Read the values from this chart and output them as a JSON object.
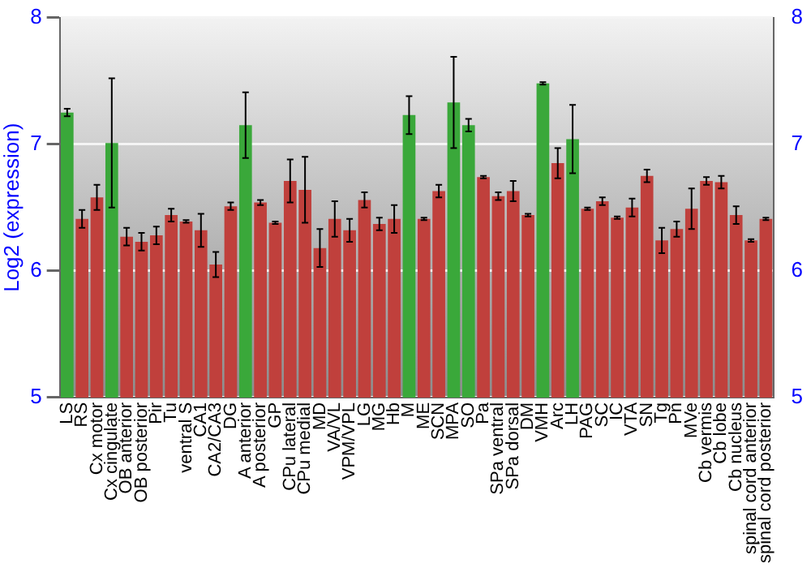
{
  "chart_data": {
    "type": "bar",
    "ylabel": "Log2 (expression)",
    "categories": [
      "LS",
      "RS",
      "Cx motor",
      "Cx cingulate",
      "OB anterior",
      "OB posterior",
      "Pir",
      "Tu",
      "ventral S",
      "CA1",
      "CA2/CA3",
      "DG",
      "A anterior",
      "A posterior",
      "GP",
      "CPu lateral",
      "CPu medial",
      "MD",
      "VA/VL",
      "VPM/VPL",
      "LG",
      "MG",
      "Hb",
      "M",
      "ME",
      "SCN",
      "MPA",
      "SO",
      "Pa",
      "SPa ventral",
      "SPa dorsal",
      "DM",
      "VMH",
      "Arc",
      "LH",
      "PAG",
      "SC",
      "IC",
      "VTA",
      "SN",
      "Tg",
      "Pn",
      "MVe",
      "Cb vermis",
      "Cb lobe",
      "Cb nucleus",
      "spinal cord anterior",
      "spinal cord posterior"
    ],
    "values": [
      7.25,
      6.41,
      6.58,
      7.01,
      6.27,
      6.23,
      6.28,
      6.44,
      6.39,
      6.32,
      6.05,
      6.51,
      7.15,
      6.54,
      6.38,
      6.71,
      6.64,
      6.18,
      6.41,
      6.32,
      6.56,
      6.37,
      6.41,
      7.23,
      6.41,
      6.63,
      7.33,
      7.15,
      6.74,
      6.59,
      6.63,
      6.44,
      7.48,
      6.85,
      7.04,
      6.49,
      6.55,
      6.42,
      6.5,
      6.75,
      6.24,
      6.33,
      6.49,
      6.71,
      6.7,
      6.44,
      6.24,
      6.41
    ],
    "errors": [
      0.03,
      0.07,
      0.1,
      0.51,
      0.07,
      0.07,
      0.07,
      0.05,
      0.01,
      0.13,
      0.1,
      0.03,
      0.26,
      0.02,
      0.01,
      0.17,
      0.26,
      0.15,
      0.14,
      0.09,
      0.06,
      0.05,
      0.11,
      0.15,
      0.01,
      0.05,
      0.36,
      0.05,
      0.01,
      0.03,
      0.08,
      0.01,
      0.01,
      0.12,
      0.27,
      0.01,
      0.03,
      0.01,
      0.07,
      0.05,
      0.1,
      0.06,
      0.16,
      0.03,
      0.05,
      0.07,
      0.01,
      0.01
    ],
    "colors": [
      "#3aa83a",
      "#c0403c",
      "#c0403c",
      "#3aa83a",
      "#c0403c",
      "#c0403c",
      "#c0403c",
      "#c0403c",
      "#c0403c",
      "#c0403c",
      "#c0403c",
      "#c0403c",
      "#3aa83a",
      "#c0403c",
      "#c0403c",
      "#c0403c",
      "#c0403c",
      "#c0403c",
      "#c0403c",
      "#c0403c",
      "#c0403c",
      "#c0403c",
      "#c0403c",
      "#3aa83a",
      "#c0403c",
      "#c0403c",
      "#3aa83a",
      "#3aa83a",
      "#c0403c",
      "#c0403c",
      "#c0403c",
      "#c0403c",
      "#3aa83a",
      "#c0403c",
      "#3aa83a",
      "#c0403c",
      "#c0403c",
      "#c0403c",
      "#c0403c",
      "#c0403c",
      "#c0403c",
      "#c0403c",
      "#c0403c",
      "#c0403c",
      "#c0403c",
      "#c0403c",
      "#c0403c",
      "#c0403c"
    ],
    "ylim": [
      5,
      8
    ],
    "yticks": [
      5,
      6,
      7,
      8
    ],
    "y2lim": [
      5,
      8
    ],
    "y2ticks": [
      5,
      6,
      7,
      8
    ],
    "grid": "y",
    "legend": false
  }
}
